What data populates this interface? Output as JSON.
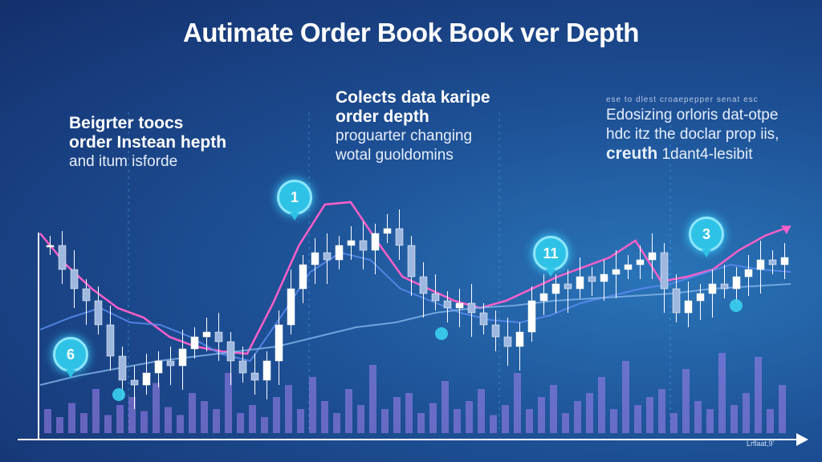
{
  "title": "Autimate Order Book Book ver Depth",
  "annotations": {
    "left": {
      "line1": "Beigrter toocs",
      "line2": "order Instean hepth",
      "line3": "and itum isforde"
    },
    "center": {
      "line1": "Colects data karipe",
      "line2": "order depth",
      "line3": "proguarter changing",
      "line4": "wotal guoldomins"
    },
    "right": {
      "small": "ese to dlest croaepepper senat esc",
      "line1": "Edosizing orloris dat-otpe",
      "line2": "hdc itz the doclar prop iis,",
      "line3_bold": "creuth",
      "line3": "1dant4-lesibit"
    }
  },
  "markers": [
    "1",
    "11",
    "3",
    "6"
  ],
  "x_axis_label": "Lrflaat,9'",
  "colors": {
    "candles": "#ffffff",
    "pink_line": "#ff5fc8",
    "blue_line": "#5a8cf0",
    "light_line": "#7fb2e8",
    "volume": "#9a7ee8",
    "marker": "#2ec3e6"
  },
  "chart_data": {
    "type": "line",
    "title": "Autimate Order Book Book ver Depth",
    "xlabel": "",
    "ylabel": "",
    "ylim": [
      0,
      100
    ],
    "grid": false,
    "candle_closes": [
      78,
      68,
      60,
      55,
      45,
      32,
      22,
      20,
      25,
      30,
      28,
      35,
      40,
      42,
      38,
      30,
      25,
      22,
      30,
      45,
      60,
      70,
      75,
      72,
      78,
      80,
      76,
      83,
      85,
      78,
      65,
      58,
      55,
      52,
      54,
      50,
      45,
      40,
      36,
      42,
      55,
      58,
      62,
      60,
      65,
      63,
      66,
      68,
      70,
      72,
      75,
      60,
      50,
      55,
      58,
      62,
      60,
      65,
      68,
      72,
      70,
      73
    ],
    "series": [
      {
        "values": [
          83,
          70,
          60,
          52,
          48,
          40,
          36,
          34,
          33,
          54,
          78,
          95,
          96,
          80,
          65,
          60,
          55,
          52,
          55,
          60,
          65,
          69,
          73,
          80,
          63,
          65,
          68,
          76,
          82,
          86
        ]
      },
      {
        "values": [
          43,
          48,
          52,
          46,
          45,
          40,
          33,
          30,
          48,
          67,
          75,
          72,
          60,
          55,
          50,
          47,
          46,
          49,
          54,
          57,
          60,
          62,
          66,
          70,
          68,
          67
        ]
      },
      {
        "values": [
          20,
          24,
          27,
          30,
          32,
          34,
          36,
          40,
          44,
          46,
          50,
          52,
          53,
          55,
          56,
          57,
          58,
          60,
          61,
          62
        ]
      }
    ],
    "volume": [
      12,
      8,
      15,
      10,
      22,
      9,
      14,
      18,
      11,
      25,
      13,
      9,
      20,
      16,
      12,
      30,
      10,
      14,
      8,
      18,
      24,
      12,
      28,
      16,
      10,
      22,
      14,
      34,
      12,
      18,
      20,
      10,
      15,
      26,
      12,
      16,
      22,
      9,
      14,
      30,
      12,
      18,
      24,
      10,
      16,
      20,
      28,
      12,
      36,
      14,
      18,
      22,
      10,
      32,
      16,
      12,
      40,
      14,
      20,
      38,
      12,
      24
    ]
  }
}
